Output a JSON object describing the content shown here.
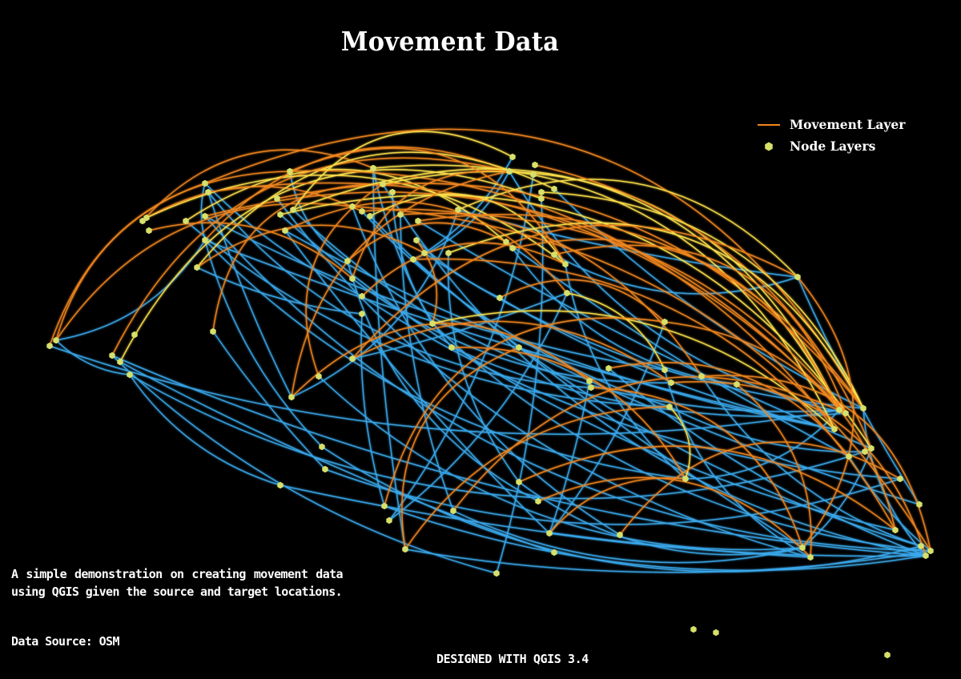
{
  "title": "Movement Data",
  "legend": {
    "movement_label": "Movement Layer",
    "node_label": "Node Layers"
  },
  "description": "A simple demonstration on creating movement data using QGIS given the source and target locations.",
  "data_source": "Data Source: OSM",
  "credit": "DESIGNED WITH QGIS 3.4",
  "colors": {
    "background": "#000000",
    "movement_orange": "#f2861f",
    "movement_yellow": "#ffe24a",
    "movement_blue": "#3aa9ec",
    "node_fill": "#d6e06a"
  }
}
